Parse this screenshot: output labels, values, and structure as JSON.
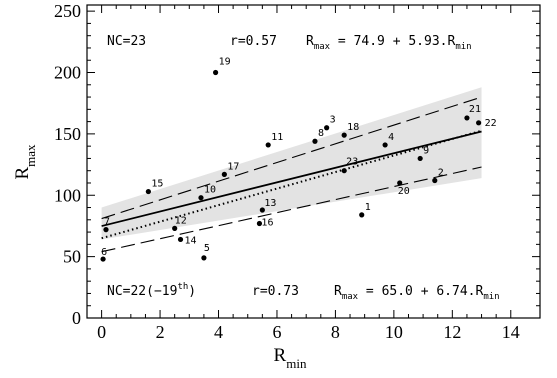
{
  "chart_data": {
    "type": "scatter",
    "xlabel_main": "R",
    "xlabel_sub": "min",
    "ylabel_main": "R",
    "ylabel_sub": "max",
    "xlim": [
      -0.5,
      15
    ],
    "ylim": [
      0,
      255
    ],
    "xticks": [
      0,
      2,
      4,
      6,
      8,
      10,
      12,
      14
    ],
    "yticks": [
      0,
      50,
      100,
      150,
      200,
      250
    ],
    "xtick_labels": [
      "0",
      "2",
      "4",
      "6",
      "8",
      "10",
      "12",
      "14"
    ],
    "ytick_labels": [
      "0",
      "50",
      "100",
      "150",
      "200",
      "250"
    ],
    "grid": false,
    "points": [
      {
        "id": "1",
        "x": 8.9,
        "y": 84
      },
      {
        "id": "2",
        "x": 11.4,
        "y": 112
      },
      {
        "id": "3",
        "x": 7.7,
        "y": 155
      },
      {
        "id": "4",
        "x": 9.7,
        "y": 141
      },
      {
        "id": "5",
        "x": 3.5,
        "y": 49
      },
      {
        "id": "6",
        "x": 0.05,
        "y": 48
      },
      {
        "id": "7",
        "x": 0.15,
        "y": 72
      },
      {
        "id": "8",
        "x": 7.3,
        "y": 144
      },
      {
        "id": "9",
        "x": 10.9,
        "y": 130
      },
      {
        "id": "10",
        "x": 3.4,
        "y": 98
      },
      {
        "id": "11",
        "x": 5.7,
        "y": 141
      },
      {
        "id": "12",
        "x": 2.5,
        "y": 73
      },
      {
        "id": "13",
        "x": 5.5,
        "y": 88
      },
      {
        "id": "14",
        "x": 2.7,
        "y": 64
      },
      {
        "id": "15",
        "x": 1.6,
        "y": 103
      },
      {
        "id": "16",
        "x": 5.4,
        "y": 77
      },
      {
        "id": "17",
        "x": 4.2,
        "y": 117
      },
      {
        "id": "18",
        "x": 8.3,
        "y": 149
      },
      {
        "id": "19",
        "x": 3.9,
        "y": 200
      },
      {
        "id": "20",
        "x": 10.2,
        "y": 110
      },
      {
        "id": "21",
        "x": 12.5,
        "y": 163
      },
      {
        "id": "22",
        "x": 12.9,
        "y": 159
      },
      {
        "id": "23",
        "x": 8.3,
        "y": 120
      }
    ],
    "fit_all": {
      "intercept": 74.9,
      "slope": 5.93
    },
    "fit_excl": {
      "intercept": 65.0,
      "slope": 6.74
    },
    "band": {
      "x": [
        0,
        13
      ],
      "lower": [
        64,
        114
      ],
      "upper": [
        90,
        188
      ]
    },
    "dashed_upper": {
      "x": [
        0,
        13
      ],
      "y": [
        81,
        180
      ]
    },
    "dashed_lower": {
      "x": [
        0,
        13
      ],
      "y": [
        54,
        123
      ]
    },
    "annotations": {
      "nc_top": "NC=23",
      "r_top": "r=0.57",
      "eq_top": {
        "main": "R",
        "sub": "max",
        "rest": " = 74.9 + 5.93.R",
        "sub2": "min"
      },
      "nc_bottom": {
        "main": "NC=22(−19",
        "sup": "th",
        "end": ")"
      },
      "r_bottom": "r=0.73",
      "eq_bottom": {
        "main": "R",
        "sub": "max",
        "rest": " = 65.0 + 6.74.R",
        "sub2": "min"
      }
    },
    "colors": {
      "band": "#e3e3e3",
      "axis": "#000000",
      "point": "#000000"
    }
  }
}
